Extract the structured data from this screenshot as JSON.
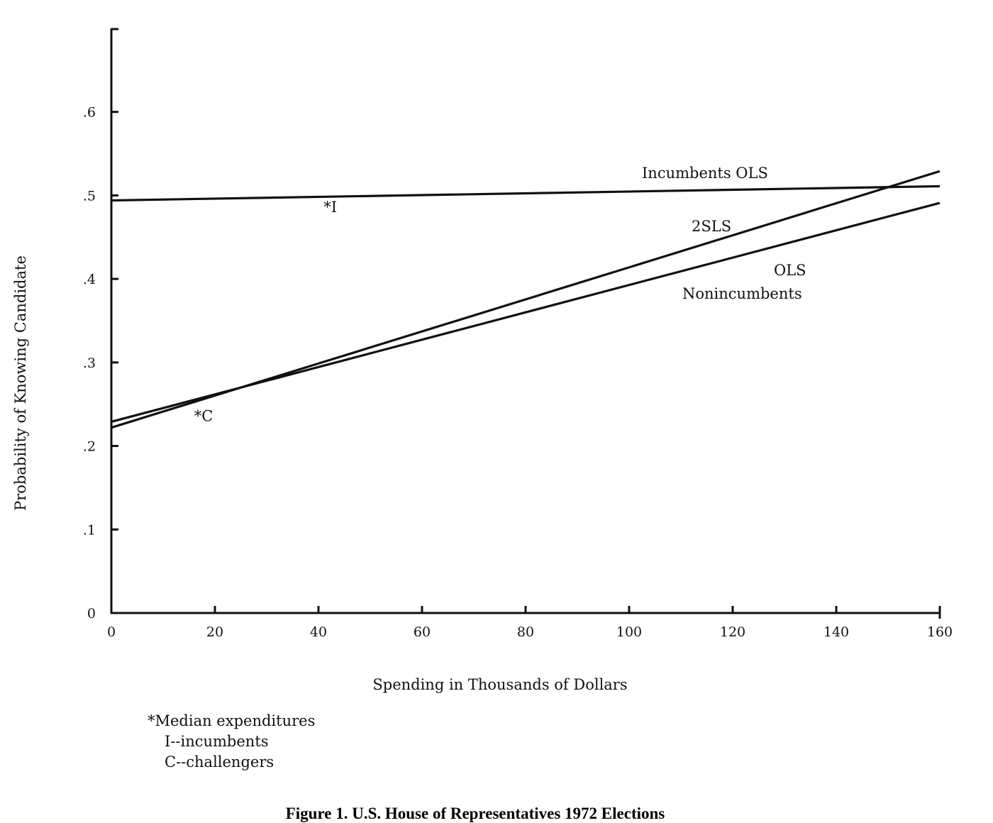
{
  "chart_data": {
    "type": "line",
    "title": "Figure 1. U.S. House of Representatives 1972 Elections",
    "xlabel": "Spending in Thousands of Dollars",
    "ylabel": "Probability of Knowing Candidate",
    "xlim": [
      0,
      160
    ],
    "ylim": [
      0,
      0.7
    ],
    "x_ticks": [
      0,
      20,
      40,
      60,
      80,
      100,
      120,
      140,
      160
    ],
    "x_tick_labels": [
      "0",
      "20",
      "40",
      "60",
      "80",
      "100",
      "120",
      "140",
      "160"
    ],
    "y_ticks": [
      0,
      0.1,
      0.2,
      0.3,
      0.4,
      0.5,
      0.6
    ],
    "y_tick_labels": [
      "0",
      ".1",
      ".2",
      ".3",
      ".4",
      ".5",
      ".6"
    ],
    "grid": false,
    "series": [
      {
        "name": "Incumbents OLS",
        "x": [
          0,
          160
        ],
        "y": [
          0.494,
          0.511
        ]
      },
      {
        "name": "2SLS",
        "x": [
          0,
          160
        ],
        "y": [
          0.222,
          0.529
        ]
      },
      {
        "name": "OLS Nonincumbents",
        "x": [
          0,
          160
        ],
        "y": [
          0.229,
          0.491
        ]
      }
    ],
    "line_labels": {
      "incumbents_ols": "Incumbents  OLS",
      "twosls": "2SLS",
      "ols": "OLS",
      "nonincumbents": "Nonincumbents"
    },
    "markers": [
      {
        "label": "*I",
        "x": 41,
        "y": 0.48
      },
      {
        "label": "*C",
        "x": 16,
        "y": 0.23
      }
    ]
  },
  "footnote": {
    "line1": "*Median expenditures",
    "line2": "I--incumbents",
    "line3": "C--challengers"
  }
}
